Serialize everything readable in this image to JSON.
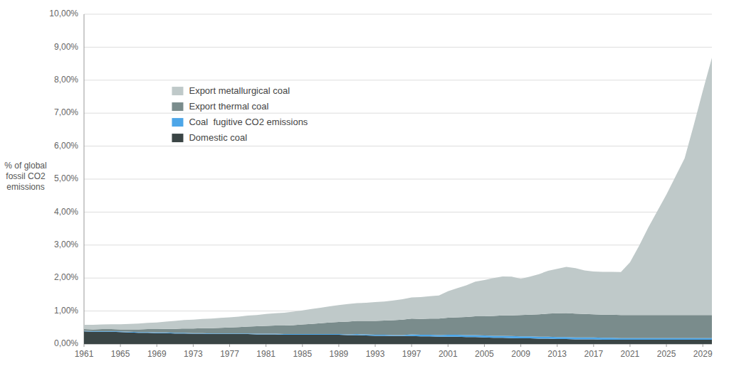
{
  "chart_data": {
    "type": "area",
    "stacked": true,
    "grid": true,
    "legend": "upper left",
    "y_label": "% of global\nfossil CO2\nemissions",
    "x": [
      1961,
      1962,
      1963,
      1964,
      1965,
      1966,
      1967,
      1968,
      1969,
      1970,
      1971,
      1972,
      1973,
      1974,
      1975,
      1976,
      1977,
      1978,
      1979,
      1980,
      1981,
      1982,
      1983,
      1984,
      1985,
      1986,
      1987,
      1988,
      1989,
      1990,
      1991,
      1992,
      1993,
      1994,
      1995,
      1996,
      1997,
      1998,
      1999,
      2000,
      2001,
      2002,
      2003,
      2004,
      2005,
      2006,
      2007,
      2008,
      2009,
      2010,
      2011,
      2012,
      2013,
      2014,
      2015,
      2016,
      2017,
      2018,
      2019,
      2020,
      2021,
      2022,
      2023,
      2024,
      2025,
      2026,
      2027,
      2028,
      2029,
      2030
    ],
    "series": [
      {
        "name": "Domestic coal",
        "color": "#3a4545",
        "values": [
          0.38,
          0.37,
          0.37,
          0.37,
          0.36,
          0.35,
          0.34,
          0.34,
          0.33,
          0.33,
          0.32,
          0.32,
          0.31,
          0.31,
          0.3,
          0.3,
          0.3,
          0.3,
          0.3,
          0.29,
          0.29,
          0.29,
          0.28,
          0.28,
          0.28,
          0.28,
          0.28,
          0.28,
          0.28,
          0.27,
          0.27,
          0.26,
          0.25,
          0.25,
          0.24,
          0.24,
          0.24,
          0.23,
          0.23,
          0.22,
          0.22,
          0.22,
          0.21,
          0.21,
          0.2,
          0.19,
          0.19,
          0.18,
          0.17,
          0.17,
          0.16,
          0.16,
          0.15,
          0.15,
          0.14,
          0.14,
          0.14,
          0.13,
          0.13,
          0.13,
          0.13,
          0.13,
          0.13,
          0.13,
          0.13,
          0.13,
          0.13,
          0.13,
          0.13,
          0.13
        ]
      },
      {
        "name": "Coal  fugitive CO2 emissions",
        "color": "#4da6e8",
        "values": [
          0.02,
          0.02,
          0.02,
          0.02,
          0.02,
          0.02,
          0.02,
          0.02,
          0.02,
          0.02,
          0.02,
          0.02,
          0.02,
          0.02,
          0.02,
          0.02,
          0.02,
          0.02,
          0.02,
          0.02,
          0.02,
          0.02,
          0.02,
          0.02,
          0.02,
          0.02,
          0.02,
          0.02,
          0.02,
          0.02,
          0.03,
          0.03,
          0.03,
          0.03,
          0.03,
          0.03,
          0.05,
          0.05,
          0.05,
          0.05,
          0.06,
          0.06,
          0.06,
          0.06,
          0.06,
          0.06,
          0.06,
          0.06,
          0.06,
          0.06,
          0.06,
          0.06,
          0.06,
          0.06,
          0.06,
          0.06,
          0.06,
          0.06,
          0.06,
          0.05,
          0.05,
          0.05,
          0.05,
          0.05,
          0.05,
          0.05,
          0.05,
          0.05,
          0.05,
          0.05
        ]
      },
      {
        "name": "Export thermal coal",
        "color": "#7a8c8c",
        "values": [
          0.05,
          0.05,
          0.06,
          0.06,
          0.06,
          0.07,
          0.08,
          0.09,
          0.1,
          0.11,
          0.12,
          0.13,
          0.14,
          0.15,
          0.16,
          0.17,
          0.18,
          0.19,
          0.21,
          0.23,
          0.24,
          0.25,
          0.26,
          0.27,
          0.29,
          0.31,
          0.33,
          0.35,
          0.37,
          0.39,
          0.4,
          0.41,
          0.42,
          0.43,
          0.45,
          0.47,
          0.48,
          0.48,
          0.49,
          0.5,
          0.52,
          0.53,
          0.55,
          0.57,
          0.58,
          0.6,
          0.62,
          0.63,
          0.65,
          0.66,
          0.68,
          0.7,
          0.72,
          0.73,
          0.72,
          0.71,
          0.7,
          0.7,
          0.7,
          0.7,
          0.7,
          0.7,
          0.7,
          0.7,
          0.7,
          0.7,
          0.7,
          0.7,
          0.7,
          0.7
        ]
      },
      {
        "name": "Export metallurgical coal",
        "color": "#bfc9c9",
        "values": [
          0.13,
          0.14,
          0.14,
          0.15,
          0.16,
          0.17,
          0.18,
          0.19,
          0.2,
          0.22,
          0.24,
          0.26,
          0.27,
          0.28,
          0.29,
          0.3,
          0.31,
          0.32,
          0.33,
          0.34,
          0.36,
          0.37,
          0.39,
          0.41,
          0.43,
          0.45,
          0.47,
          0.49,
          0.51,
          0.53,
          0.54,
          0.55,
          0.57,
          0.58,
          0.6,
          0.62,
          0.64,
          0.66,
          0.68,
          0.7,
          0.8,
          0.88,
          0.96,
          1.05,
          1.1,
          1.15,
          1.18,
          1.17,
          1.1,
          1.15,
          1.22,
          1.3,
          1.35,
          1.4,
          1.38,
          1.32,
          1.3,
          1.3,
          1.3,
          1.3,
          1.6,
          2.1,
          2.65,
          3.15,
          3.65,
          4.2,
          4.75,
          5.75,
          6.8,
          7.8
        ]
      }
    ],
    "xlim": [
      1961,
      2030
    ],
    "xticks": [
      1961,
      1965,
      1969,
      1973,
      1977,
      1981,
      1985,
      1989,
      1993,
      1997,
      2001,
      2005,
      2009,
      2013,
      2017,
      2021,
      2025,
      2029
    ],
    "ylim": [
      0,
      10.0
    ],
    "yticks": [
      {
        "value": 0.0,
        "label": "0,00%"
      },
      {
        "value": 1.0,
        "label": "1,00%"
      },
      {
        "value": 2.0,
        "label": "2,00%"
      },
      {
        "value": 3.0,
        "label": "3,00%"
      },
      {
        "value": 4.0,
        "label": "4,00%"
      },
      {
        "value": 5.0,
        "label": "5,00%"
      },
      {
        "value": 6.0,
        "label": "6,00%"
      },
      {
        "value": 7.0,
        "label": "7,00%"
      },
      {
        "value": 8.0,
        "label": "8,00%"
      },
      {
        "value": 9.0,
        "label": "9,00%"
      },
      {
        "value": 10.0,
        "label": "10,00%"
      }
    ]
  }
}
